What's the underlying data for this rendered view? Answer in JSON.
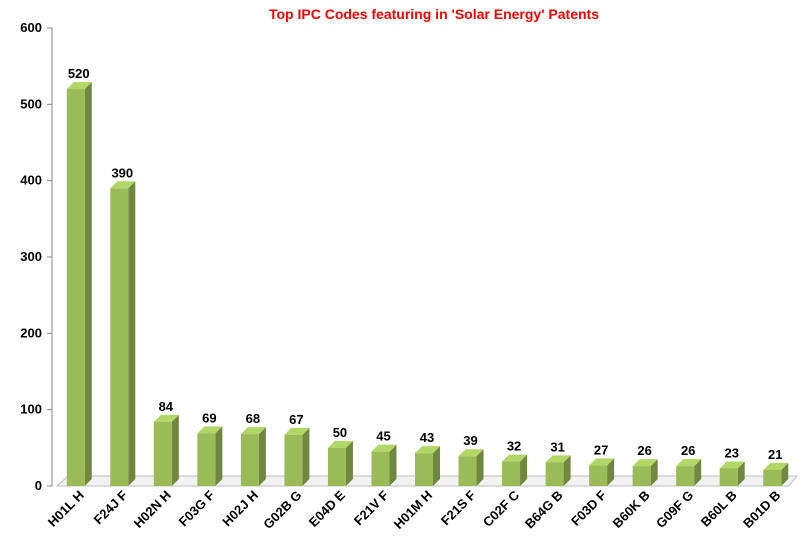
{
  "chart_data": {
    "type": "bar",
    "title": "Top IPC Codes featuring in 'Solar Energy' Patents",
    "categories": [
      "H01L H",
      "F24J F",
      "H02N H",
      "F03G F",
      "H02J H",
      "G02B G",
      "E04D E",
      "F21V F",
      "H01M H",
      "F21S F",
      "C02F C",
      "B64G B",
      "F03D F",
      "B60K B",
      "G09F G",
      "B60L B",
      "B01D B"
    ],
    "values": [
      520,
      390,
      84,
      69,
      68,
      67,
      50,
      45,
      43,
      39,
      32,
      31,
      27,
      26,
      26,
      23,
      21
    ],
    "color": "#9bbb59",
    "ylim": [
      0,
      600
    ],
    "yticks": [
      0,
      100,
      200,
      300,
      400,
      500,
      600
    ],
    "grid": false
  }
}
